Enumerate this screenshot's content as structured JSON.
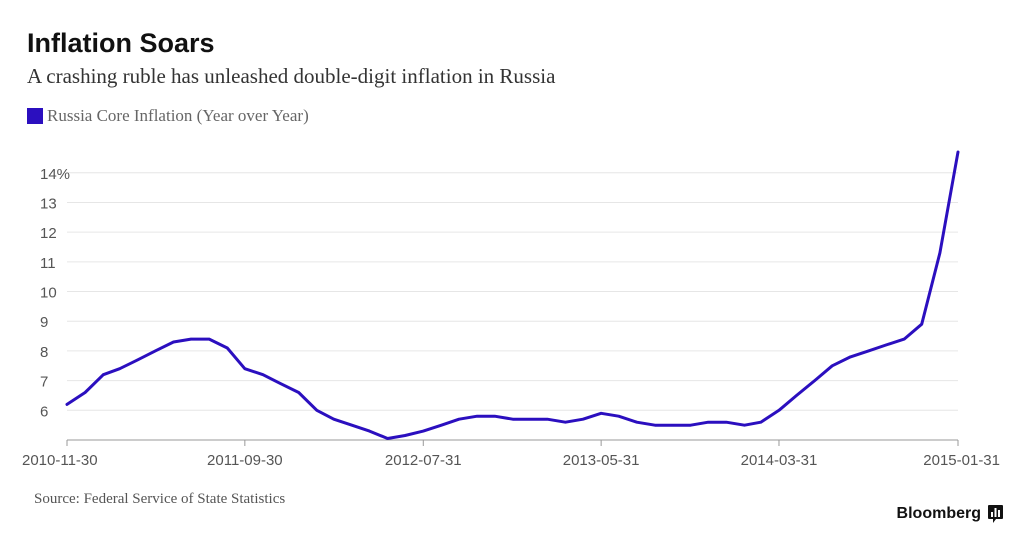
{
  "header": {
    "title": "Inflation Soars",
    "subtitle": "A crashing ruble has unleashed double-digit inflation in Russia"
  },
  "legend": {
    "label": "Russia Core Inflation (Year over Year)",
    "color": "#2b0fbf"
  },
  "footer": {
    "source": "Source: Federal Service of State Statistics",
    "brand": "Bloomberg",
    "brand_icon": "bloomberg-terminal-icon"
  },
  "chart_data": {
    "type": "line",
    "title": "Inflation Soars",
    "subtitle": "A crashing ruble has unleashed double-digit inflation in Russia",
    "xlabel": "",
    "ylabel": "",
    "x_ticks": [
      "2010-11-30",
      "2011-09-30",
      "2012-07-31",
      "2013-05-31",
      "2014-03-31",
      "2015-01-31"
    ],
    "y_ticks": [
      6,
      7,
      8,
      9,
      10,
      11,
      12,
      13,
      14
    ],
    "y_tick_labels": [
      "6",
      "7",
      "8",
      "9",
      "10",
      "11",
      "12",
      "13",
      "14%"
    ],
    "ylim": [
      5,
      14.7
    ],
    "grid": true,
    "legend_position": "top-left",
    "series": [
      {
        "name": "Russia Core Inflation (Year over Year)",
        "color": "#2b0fbf",
        "points": [
          [
            "2010-11-30",
            6.2
          ],
          [
            "2010-12-31",
            6.6
          ],
          [
            "2011-01-31",
            7.2
          ],
          [
            "2011-02-28",
            7.4
          ],
          [
            "2011-03-31",
            7.7
          ],
          [
            "2011-04-30",
            8.0
          ],
          [
            "2011-05-31",
            8.3
          ],
          [
            "2011-06-30",
            8.4
          ],
          [
            "2011-07-31",
            8.4
          ],
          [
            "2011-08-31",
            8.1
          ],
          [
            "2011-09-30",
            7.4
          ],
          [
            "2011-10-31",
            7.2
          ],
          [
            "2011-11-30",
            6.9
          ],
          [
            "2011-12-31",
            6.6
          ],
          [
            "2012-01-31",
            6.0
          ],
          [
            "2012-02-29",
            5.7
          ],
          [
            "2012-03-31",
            5.5
          ],
          [
            "2012-04-30",
            5.3
          ],
          [
            "2012-05-31",
            5.05
          ],
          [
            "2012-06-30",
            5.15
          ],
          [
            "2012-07-31",
            5.3
          ],
          [
            "2012-08-31",
            5.5
          ],
          [
            "2012-09-30",
            5.7
          ],
          [
            "2012-10-31",
            5.8
          ],
          [
            "2012-11-30",
            5.8
          ],
          [
            "2012-12-31",
            5.7
          ],
          [
            "2013-01-31",
            5.7
          ],
          [
            "2013-02-28",
            5.7
          ],
          [
            "2013-03-31",
            5.6
          ],
          [
            "2013-04-30",
            5.7
          ],
          [
            "2013-05-31",
            5.9
          ],
          [
            "2013-06-30",
            5.8
          ],
          [
            "2013-07-31",
            5.6
          ],
          [
            "2013-08-31",
            5.5
          ],
          [
            "2013-09-30",
            5.5
          ],
          [
            "2013-10-31",
            5.5
          ],
          [
            "2013-11-30",
            5.6
          ],
          [
            "2013-12-31",
            5.6
          ],
          [
            "2014-01-31",
            5.5
          ],
          [
            "2014-02-28",
            5.6
          ],
          [
            "2014-03-31",
            6.0
          ],
          [
            "2014-04-30",
            6.5
          ],
          [
            "2014-05-31",
            7.0
          ],
          [
            "2014-06-30",
            7.5
          ],
          [
            "2014-07-31",
            7.8
          ],
          [
            "2014-08-31",
            8.0
          ],
          [
            "2014-09-30",
            8.2
          ],
          [
            "2014-10-31",
            8.4
          ],
          [
            "2014-11-30",
            8.9
          ],
          [
            "2014-12-31",
            11.3
          ],
          [
            "2015-01-31",
            14.7
          ]
        ]
      }
    ]
  }
}
